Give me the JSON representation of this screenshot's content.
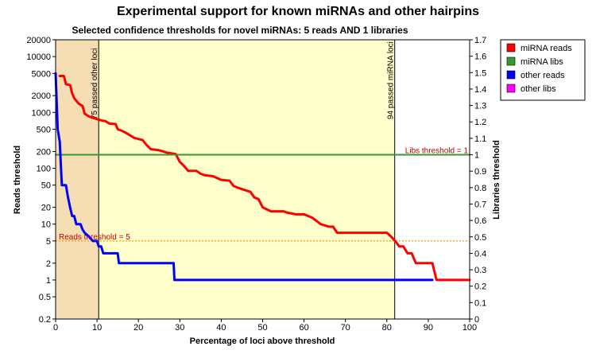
{
  "chart_data": {
    "type": "line",
    "title": "Experimental support for known miRNAs and other hairpins",
    "subtitle": "Selected confidence thresholds for novel miRNAs: 5 reads AND 1 libraries",
    "xlabel": "Percentage of loci above threshold",
    "ylabel_left": "Reads threshold",
    "ylabel_right": "Libraries threshold",
    "xlim": [
      0,
      100
    ],
    "ylim_left": [
      0.2,
      20000
    ],
    "ylim_right": [
      0,
      1.7
    ],
    "left_scale": "log",
    "x_ticks": [
      "0",
      "10",
      "20",
      "30",
      "40",
      "50",
      "60",
      "70",
      "80",
      "90",
      "100"
    ],
    "y_left_ticks": [
      {
        "v": 0.2,
        "label": "0.2"
      },
      {
        "v": 0.5,
        "label": "0.5"
      },
      {
        "v": 1,
        "label": "1"
      },
      {
        "v": 2,
        "label": "2"
      },
      {
        "v": 5,
        "label": "5"
      },
      {
        "v": 10,
        "label": "10"
      },
      {
        "v": 20,
        "label": "20"
      },
      {
        "v": 50,
        "label": "50"
      },
      {
        "v": 100,
        "label": "100"
      },
      {
        "v": 200,
        "label": "200"
      },
      {
        "v": 500,
        "label": "500"
      },
      {
        "v": 1000,
        "label": "1000"
      },
      {
        "v": 2000,
        "label": "2000"
      },
      {
        "v": 5000,
        "label": "5000"
      },
      {
        "v": 10000,
        "label": "10000"
      },
      {
        "v": 20000,
        "label": "20000"
      }
    ],
    "y_right_ticks": [
      "0",
      "0.1",
      "0.2",
      "0.3",
      "0.4",
      "0.5",
      "0.6",
      "0.7",
      "0.8",
      "0.9",
      "1",
      "1.1",
      "1.2",
      "1.3",
      "1.4",
      "1.5",
      "1.6",
      "1.7"
    ],
    "regions": [
      {
        "x0": 0,
        "x1": 10.4,
        "color": "#f5deb3"
      },
      {
        "x0": 10.4,
        "x1": 81.9,
        "color": "#ffffcc"
      }
    ],
    "vlines": [
      {
        "x": 10.4,
        "label": "75 passed other loci"
      },
      {
        "x": 81.9,
        "label": "94 passed miRNA loci"
      }
    ],
    "hlines": [
      {
        "axis": "right",
        "value": 1,
        "label": "Libs threshold = 1",
        "color": "#ff9900",
        "label_color": "#cc0000"
      },
      {
        "axis": "left",
        "value": 5,
        "label": "Reads threshold = 5",
        "color": "#ff9900",
        "label_color": "#cc0000"
      }
    ],
    "series": [
      {
        "name": "miRNA reads",
        "axis": "left",
        "color": "#ff0000",
        "points": [
          [
            1,
            4500
          ],
          [
            2,
            4500
          ],
          [
            2.5,
            3200
          ],
          [
            3.5,
            3100
          ],
          [
            4,
            2200
          ],
          [
            4.5,
            1800
          ],
          [
            5.5,
            1450
          ],
          [
            6.5,
            1300
          ],
          [
            7,
            950
          ],
          [
            8,
            850
          ],
          [
            9,
            800
          ],
          [
            10,
            760
          ],
          [
            11,
            720
          ],
          [
            12,
            700
          ],
          [
            13,
            630
          ],
          [
            14.5,
            620
          ],
          [
            15,
            500
          ],
          [
            16,
            470
          ],
          [
            17,
            430
          ],
          [
            19,
            350
          ],
          [
            21,
            320
          ],
          [
            22,
            260
          ],
          [
            23,
            220
          ],
          [
            25,
            210
          ],
          [
            27,
            190
          ],
          [
            29,
            180
          ],
          [
            30,
            130
          ],
          [
            31,
            110
          ],
          [
            32,
            90
          ],
          [
            34,
            90
          ],
          [
            35,
            80
          ],
          [
            36,
            75
          ],
          [
            38,
            72
          ],
          [
            40,
            62
          ],
          [
            42,
            60
          ],
          [
            43,
            48
          ],
          [
            44,
            45
          ],
          [
            46,
            40
          ],
          [
            47,
            38
          ],
          [
            48,
            30
          ],
          [
            49,
            28
          ],
          [
            50,
            20
          ],
          [
            52,
            17
          ],
          [
            55,
            17
          ],
          [
            56,
            16
          ],
          [
            58,
            15
          ],
          [
            60,
            15
          ],
          [
            62,
            13
          ],
          [
            64,
            10
          ],
          [
            66,
            9
          ],
          [
            67,
            9
          ],
          [
            68,
            7
          ],
          [
            80,
            7
          ],
          [
            81,
            6
          ],
          [
            82,
            5
          ],
          [
            83,
            4
          ],
          [
            84,
            4
          ],
          [
            85,
            3
          ],
          [
            86,
            3
          ],
          [
            87,
            2
          ],
          [
            90,
            2
          ],
          [
            91,
            2
          ],
          [
            92,
            1
          ],
          [
            100,
            1
          ]
        ]
      },
      {
        "name": "miRNA libs",
        "axis": "right",
        "color": "#339933",
        "points": [
          [
            0,
            1
          ],
          [
            100,
            1
          ]
        ]
      },
      {
        "name": "other reads",
        "axis": "left",
        "color": "#0000ff",
        "points": [
          [
            0,
            5000
          ],
          [
            0.5,
            500
          ],
          [
            1,
            300
          ],
          [
            1.5,
            50
          ],
          [
            2.5,
            50
          ],
          [
            3,
            30
          ],
          [
            3.5,
            20
          ],
          [
            4,
            14
          ],
          [
            4.5,
            14
          ],
          [
            5,
            10
          ],
          [
            6,
            10
          ],
          [
            6.5,
            8
          ],
          [
            7,
            7
          ],
          [
            8,
            6
          ],
          [
            9,
            5
          ],
          [
            10,
            5
          ],
          [
            10.4,
            4
          ],
          [
            11,
            4
          ],
          [
            11.5,
            3
          ],
          [
            15,
            3
          ],
          [
            15.3,
            2
          ],
          [
            28.5,
            2
          ],
          [
            28.7,
            1
          ],
          [
            91,
            1
          ]
        ]
      },
      {
        "name": "other libs",
        "axis": "right",
        "color": "#ff00ff",
        "points": []
      }
    ],
    "legend": [
      {
        "label": "miRNA reads",
        "color": "#ff0000"
      },
      {
        "label": "miRNA libs",
        "color": "#339933"
      },
      {
        "label": "other reads",
        "color": "#0000ff"
      },
      {
        "label": "other libs",
        "color": "#ff00ff"
      }
    ],
    "legend_position": "right"
  }
}
